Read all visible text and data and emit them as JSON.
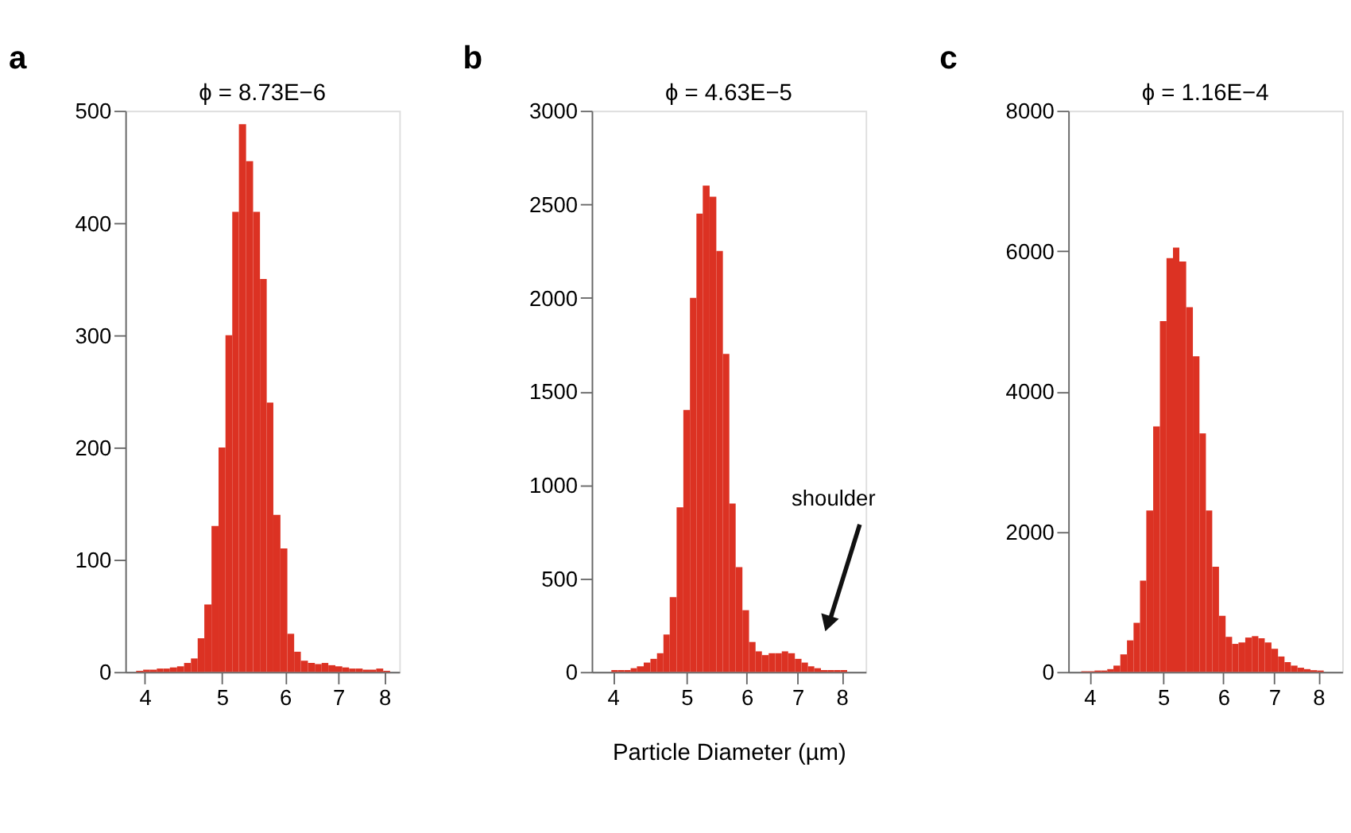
{
  "chart_data": [
    {
      "type": "histogram",
      "title": "a",
      "annotations": [
        "ϕ = 8.73E−6"
      ],
      "color": "#dc3223",
      "log": "x",
      "grid": false,
      "xlim": [
        3.78,
        8.35
      ],
      "xticks": [
        4,
        5,
        6,
        7,
        8
      ],
      "ylim": [
        0,
        500
      ],
      "yticks": [
        0,
        100,
        200,
        300,
        400,
        500
      ],
      "bins": [
        3.9,
        3.98,
        4.06,
        4.14,
        4.22,
        4.3,
        4.39,
        4.48,
        4.57,
        4.66,
        4.75,
        4.85,
        4.95,
        5.05,
        5.15,
        5.25,
        5.36,
        5.47,
        5.58,
        5.69,
        5.8,
        5.92,
        6.04,
        6.16,
        6.28,
        6.41,
        6.54,
        6.67,
        6.8,
        6.94,
        7.08,
        7.22,
        7.36,
        7.51,
        7.66,
        7.81,
        7.97,
        8.13
      ],
      "values": [
        1,
        2,
        2,
        3,
        3,
        4,
        5,
        8,
        12,
        30,
        60,
        130,
        200,
        300,
        410,
        488,
        455,
        410,
        350,
        240,
        140,
        110,
        34,
        18,
        10,
        8,
        7,
        8,
        6,
        5,
        4,
        3,
        3,
        2,
        2,
        3,
        1
      ]
    },
    {
      "type": "histogram",
      "title": "b",
      "annotations": [
        "ϕ = 4.63E−5",
        "shoulder"
      ],
      "xlabel": "Particle Diameter (µm)",
      "color": "#dc3223",
      "log": "x",
      "grid": false,
      "xlim": [
        3.75,
        8.6
      ],
      "xticks": [
        4,
        5,
        6,
        7,
        8
      ],
      "ylim": [
        0,
        3000
      ],
      "yticks": [
        0,
        500,
        1000,
        1500,
        2000,
        2500,
        3000
      ],
      "bins": [
        3.98,
        4.06,
        4.14,
        4.22,
        4.3,
        4.39,
        4.48,
        4.57,
        4.66,
        4.75,
        4.85,
        4.95,
        5.05,
        5.15,
        5.25,
        5.36,
        5.47,
        5.58,
        5.69,
        5.8,
        5.92,
        6.04,
        6.16,
        6.28,
        6.41,
        6.54,
        6.67,
        6.8,
        6.94,
        7.08,
        7.22,
        7.36,
        7.51,
        7.66,
        7.81,
        7.97,
        8.13
      ],
      "values": [
        10,
        10,
        10,
        20,
        30,
        50,
        70,
        100,
        200,
        400,
        880,
        1400,
        2000,
        2450,
        2600,
        2540,
        2250,
        1700,
        900,
        560,
        330,
        160,
        110,
        90,
        100,
        100,
        110,
        100,
        70,
        50,
        30,
        20,
        10,
        10,
        10,
        10
      ]
    },
    {
      "type": "histogram",
      "title": "c",
      "annotations": [
        "ϕ = 1.16E−4"
      ],
      "color": "#dc3223",
      "log": "x",
      "grid": false,
      "xlim": [
        3.75,
        8.6
      ],
      "xticks": [
        4,
        5,
        6,
        7,
        8
      ],
      "ylim": [
        0,
        8000
      ],
      "yticks": [
        0,
        2000,
        4000,
        6000,
        8000
      ],
      "bins": [
        3.9,
        3.98,
        4.06,
        4.14,
        4.22,
        4.3,
        4.39,
        4.48,
        4.57,
        4.66,
        4.75,
        4.85,
        4.95,
        5.05,
        5.15,
        5.25,
        5.36,
        5.47,
        5.58,
        5.69,
        5.8,
        5.92,
        6.04,
        6.16,
        6.28,
        6.41,
        6.54,
        6.67,
        6.8,
        6.94,
        7.08,
        7.22,
        7.36,
        7.51,
        7.66,
        7.81,
        7.97,
        8.13
      ],
      "values": [
        10,
        10,
        20,
        20,
        40,
        90,
        250,
        450,
        700,
        1300,
        2300,
        3500,
        5000,
        5900,
        6050,
        5850,
        5200,
        4500,
        3400,
        2300,
        1500,
        800,
        500,
        400,
        420,
        490,
        510,
        480,
        420,
        330,
        220,
        140,
        90,
        60,
        40,
        25,
        20
      ]
    }
  ]
}
